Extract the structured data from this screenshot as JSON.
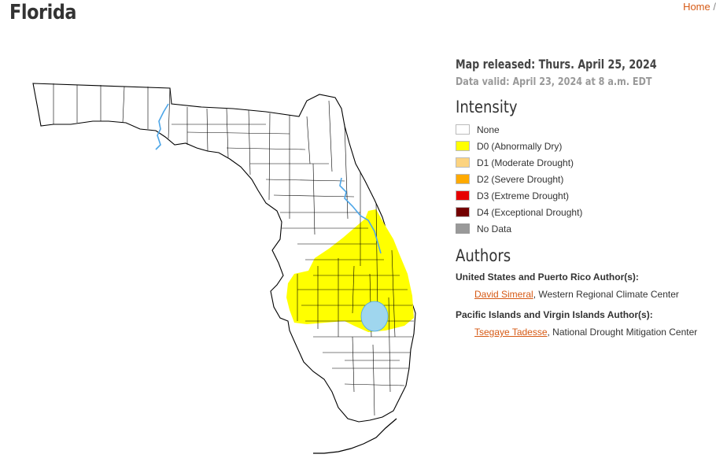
{
  "header": {
    "title": "Florida",
    "breadcrumb": {
      "home_label": "Home",
      "separator": "/"
    }
  },
  "map": {
    "state": "Florida",
    "d0_region": "East-central to south-central Florida",
    "colors": {
      "land": "#ffffff",
      "border": "#000000",
      "water": "#4da6e8",
      "lake": "#9fd6ee",
      "d0": "#ffff00"
    }
  },
  "release": {
    "released": "Map released: Thurs. April 25, 2024",
    "valid": "Data valid: April 23, 2024 at 8 a.m. EDT"
  },
  "intensity": {
    "title": "Intensity",
    "items": [
      {
        "code": "",
        "desc": "None",
        "color": "#ffffff"
      },
      {
        "code": "D0",
        "desc": "(Abnormally Dry)",
        "color": "#ffff00"
      },
      {
        "code": "D1",
        "desc": "(Moderate Drought)",
        "color": "#fcd37f"
      },
      {
        "code": "D2",
        "desc": "(Severe Drought)",
        "color": "#ffaa00"
      },
      {
        "code": "D3",
        "desc": "(Extreme Drought)",
        "color": "#e60000"
      },
      {
        "code": "D4",
        "desc": "(Exceptional Drought)",
        "color": "#730000"
      },
      {
        "code": "",
        "desc": "No Data",
        "color": "#999999"
      }
    ]
  },
  "authors": {
    "title": "Authors",
    "groups": [
      {
        "heading": "United States and Puerto Rico Author(s):",
        "name": "David Simeral",
        "affiliation": ", Western Regional Climate Center"
      },
      {
        "heading": "Pacific Islands and Virgin Islands Author(s):",
        "name": "Tsegaye Tadesse",
        "affiliation": ", National Drought Mitigation Center"
      }
    ]
  }
}
